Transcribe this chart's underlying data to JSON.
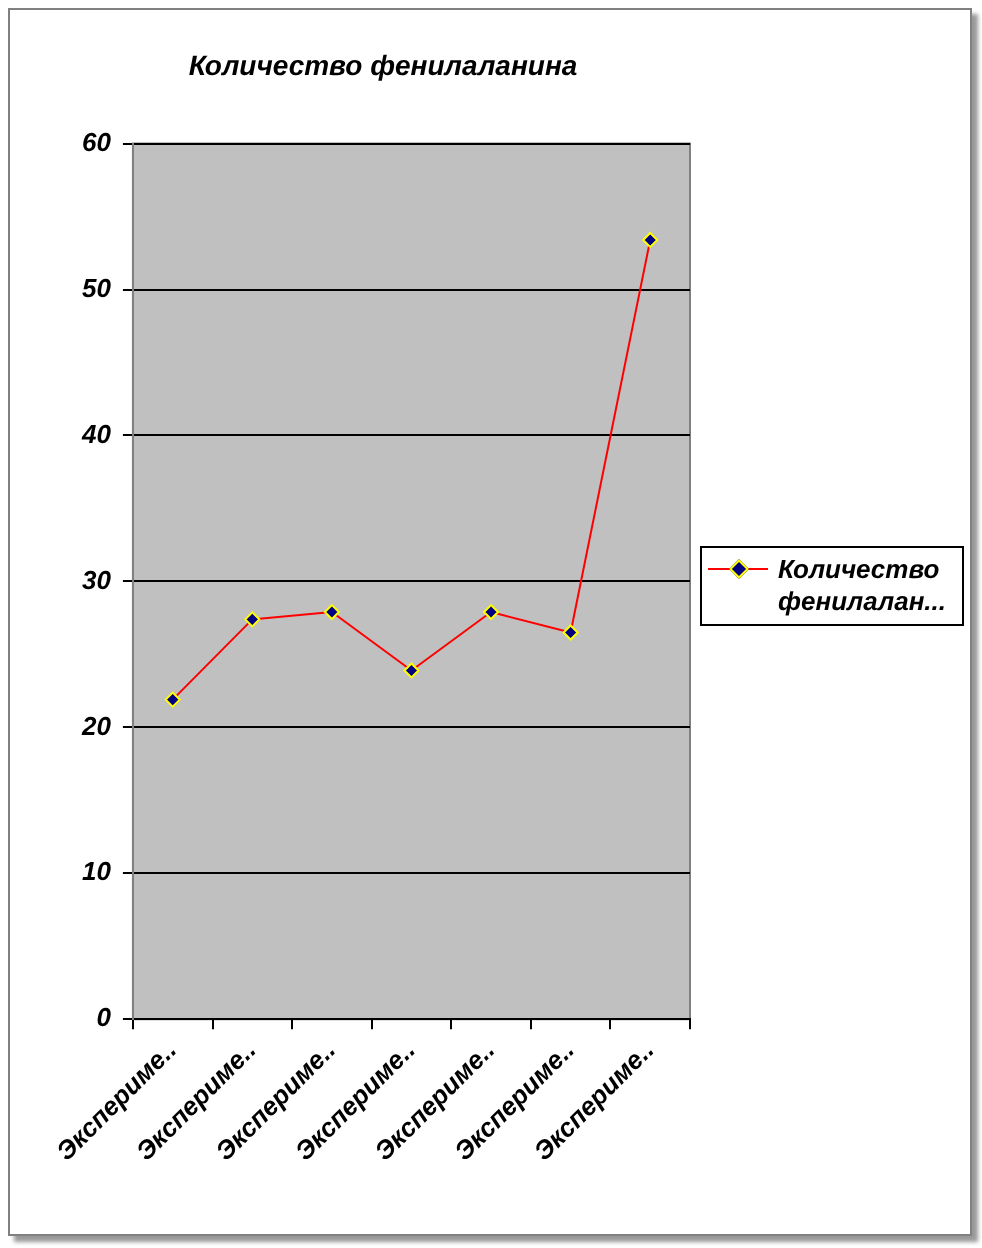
{
  "chart_data": {
    "type": "line",
    "title": "Количество фенилаланина",
    "categories": [
      "Экспериме..",
      "Экспериме..",
      "Экспериме..",
      "Экспериме..",
      "Экспериме..",
      "Экспериме..",
      "Экспериме.."
    ],
    "series": [
      {
        "name": "Количество фенилалан...",
        "color": "#ff0000",
        "values": [
          21.9,
          27.4,
          27.9,
          23.9,
          27.9,
          26.5,
          53.4
        ]
      }
    ],
    "ylim": [
      0,
      60
    ],
    "yticks": [
      0,
      10,
      20,
      30,
      40,
      50,
      60
    ],
    "grid": "y",
    "legend": "right",
    "marker": "diamond",
    "line_style": "solid"
  }
}
